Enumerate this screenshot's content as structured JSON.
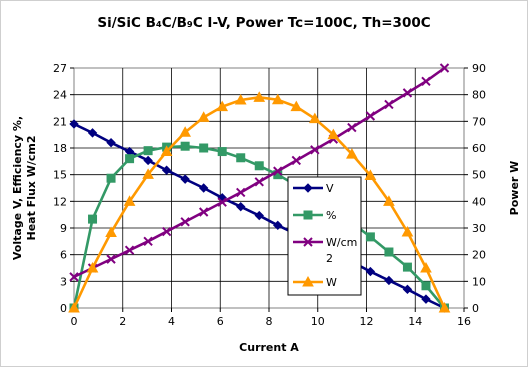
{
  "chart_data": {
    "type": "line",
    "title": "Si/SiC B₄C/B₉C I-V, Power Tc=100C, Th=300C",
    "xlabel": "Current A",
    "ylabel_left": [
      "Voltage V, Efficiency %,",
      "Heat Flux W/cm2"
    ],
    "ylabel_right": "Power W",
    "xlim": [
      0,
      16
    ],
    "ylim_left": [
      0,
      27
    ],
    "ylim_right": [
      0,
      90
    ],
    "x_ticks": [
      "0",
      "2",
      "4",
      "6",
      "8",
      "10",
      "12",
      "14",
      "16"
    ],
    "y_left_ticks": [
      "0",
      "3",
      "6",
      "9",
      "12",
      "15",
      "18",
      "21",
      "24",
      "27"
    ],
    "y_right_ticks": [
      "0",
      "10",
      "20",
      "30",
      "40",
      "50",
      "60",
      "70",
      "80",
      "90"
    ],
    "grid": true,
    "legend_position": "center-right",
    "series": [
      {
        "name": "V",
        "axis": "left",
        "color": "#000080",
        "marker": "diamond",
        "x": [
          0,
          0.76,
          1.52,
          2.28,
          3.04,
          3.8,
          4.56,
          5.32,
          6.08,
          6.84,
          7.6,
          8.36,
          9.12,
          9.88,
          10.64,
          11.4,
          12.16,
          12.92,
          13.68,
          14.44,
          15.2
        ],
        "y": [
          20.7,
          19.7,
          18.6,
          17.6,
          16.6,
          15.5,
          14.5,
          13.5,
          12.4,
          11.4,
          10.4,
          9.3,
          8.3,
          7.2,
          6.2,
          5.2,
          4.1,
          3.1,
          2.1,
          1.0,
          0.0
        ]
      },
      {
        "name": "%",
        "axis": "left",
        "color": "#339966",
        "marker": "square",
        "x": [
          0,
          0.76,
          1.52,
          2.28,
          3.04,
          3.8,
          4.56,
          5.32,
          6.08,
          6.84,
          7.6,
          8.36,
          9.12,
          9.88,
          10.64,
          11.4,
          12.16,
          12.92,
          13.68,
          14.44,
          15.2
        ],
        "y": [
          0,
          10.0,
          14.6,
          16.8,
          17.7,
          18.1,
          18.2,
          18.0,
          17.6,
          16.9,
          16.0,
          15.0,
          13.8,
          12.5,
          11.1,
          9.6,
          8.0,
          6.3,
          4.6,
          2.5,
          0
        ]
      },
      {
        "name": "W/cm2",
        "axis": "left",
        "color": "#800080",
        "marker": "x",
        "x": [
          0,
          0.76,
          1.52,
          2.28,
          3.04,
          3.8,
          4.56,
          5.32,
          6.08,
          6.84,
          7.6,
          8.36,
          9.12,
          9.88,
          10.64,
          11.4,
          12.16,
          12.92,
          13.68,
          14.44,
          15.2
        ],
        "y": [
          3.5,
          4.5,
          5.5,
          6.5,
          7.5,
          8.6,
          9.7,
          10.8,
          11.9,
          13.0,
          14.2,
          15.4,
          16.6,
          17.8,
          19.0,
          20.3,
          21.6,
          22.9,
          24.2,
          25.5,
          27.0
        ]
      },
      {
        "name": "W",
        "axis": "right",
        "color": "#FF9900",
        "marker": "triangle",
        "x": [
          0,
          0.76,
          1.52,
          2.28,
          3.04,
          3.8,
          4.56,
          5.32,
          6.08,
          6.84,
          7.6,
          8.36,
          9.12,
          9.88,
          10.64,
          11.4,
          12.16,
          12.92,
          13.68,
          14.44,
          15.2
        ],
        "y": [
          0,
          15.0,
          28.3,
          40.0,
          50.1,
          58.7,
          65.9,
          71.5,
          75.5,
          78.0,
          79.0,
          78.1,
          75.5,
          71.0,
          65.0,
          57.7,
          49.7,
          40.0,
          28.5,
          15.0,
          0
        ]
      }
    ]
  }
}
